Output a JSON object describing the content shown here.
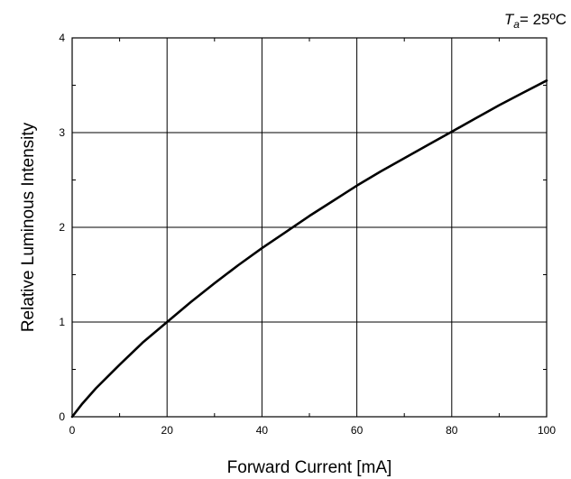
{
  "chart_data": {
    "type": "line",
    "title": "",
    "condition": {
      "symbol": "T",
      "subscript": "a",
      "value": "= 25ºC"
    },
    "xlabel": "Forward Current [mA]",
    "ylabel": "Relative Luminous Intensity",
    "xlim": [
      0,
      100
    ],
    "ylim": [
      0,
      4
    ],
    "x_ticks": [
      "0",
      "20",
      "40",
      "60",
      "80",
      "100"
    ],
    "y_ticks": [
      "0",
      "1",
      "2",
      "3",
      "4"
    ],
    "grid": true,
    "series": [
      {
        "x": [
          0,
          2,
          5,
          10,
          15,
          20,
          25,
          30,
          35,
          40,
          45,
          50,
          55,
          60,
          65,
          70,
          75,
          80,
          85,
          90,
          95,
          100
        ],
        "y": [
          0,
          0.13,
          0.3,
          0.55,
          0.79,
          1.0,
          1.21,
          1.41,
          1.6,
          1.78,
          1.95,
          2.12,
          2.28,
          2.44,
          2.59,
          2.73,
          2.87,
          3.01,
          3.15,
          3.29,
          3.42,
          3.55
        ]
      }
    ]
  }
}
